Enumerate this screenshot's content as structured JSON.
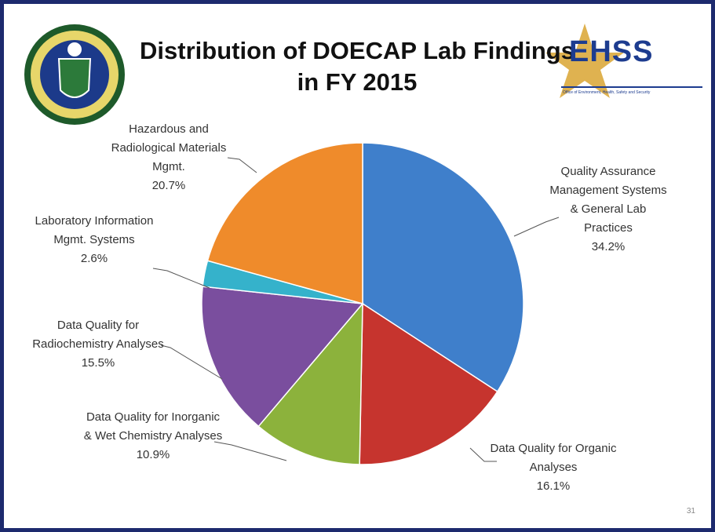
{
  "chart_data": {
    "type": "pie",
    "title": "Distribution of DOECAP Lab Findings in FY 2015",
    "categories": [
      "Quality Assurance Management Systems & General Lab Practices",
      "Data Quality for Organic Analyses",
      "Data Quality for Inorganic & Wet Chemistry Analyses",
      "Data Quality for Radiochemistry Analyses",
      "Laboratory Information Mgmt. Systems",
      "Hazardous and Radiological Materials Mgmt."
    ],
    "values": [
      34.2,
      16.1,
      10.9,
      15.5,
      2.6,
      20.7
    ],
    "value_labels": [
      "34.2%",
      "16.1%",
      "10.9%",
      "15.5%",
      "2.6%",
      "20.7%"
    ],
    "colors": [
      "#3f7fcb",
      "#c6342e",
      "#8cb23c",
      "#7a4e9e",
      "#35b2cb",
      "#ef8b2b"
    ]
  },
  "logo_text": "EHSS",
  "logo_subtitle": "Office of Environment, Health, Safety and Security",
  "page_number": "31"
}
